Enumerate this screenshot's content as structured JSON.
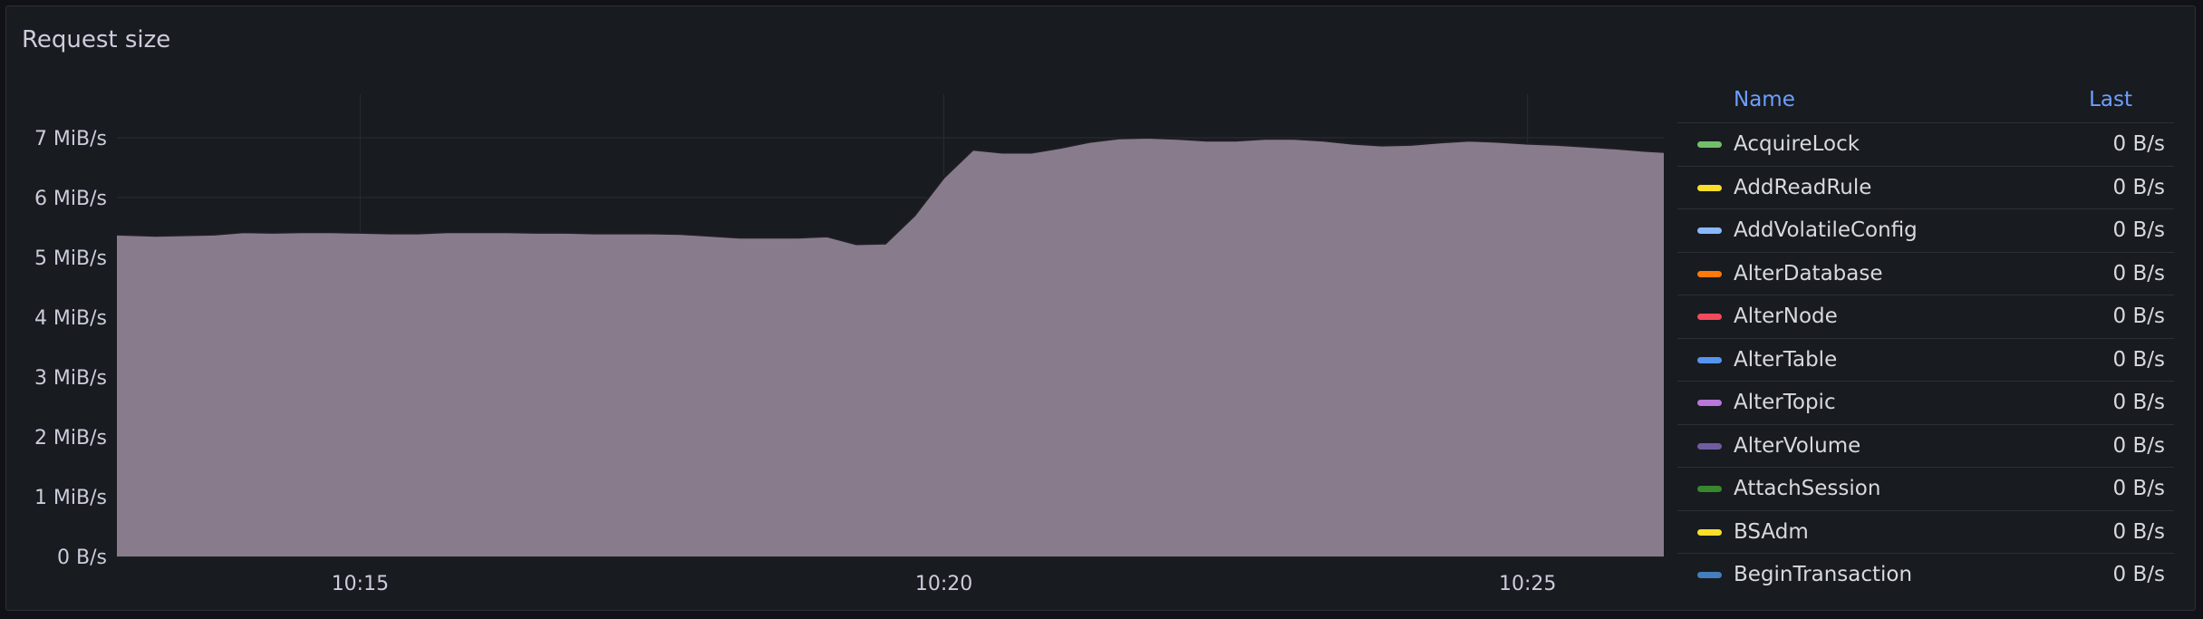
{
  "panel": {
    "title": "Request size"
  },
  "legend": {
    "header_name": "Name",
    "header_last": "Last",
    "items": [
      {
        "name": "AcquireLock",
        "value": "0 B/s",
        "color": "#73bf69"
      },
      {
        "name": "AddReadRule",
        "value": "0 B/s",
        "color": "#fade2a"
      },
      {
        "name": "AddVolatileConfig",
        "value": "0 B/s",
        "color": "#8ab8ff"
      },
      {
        "name": "AlterDatabase",
        "value": "0 B/s",
        "color": "#ff780a"
      },
      {
        "name": "AlterNode",
        "value": "0 B/s",
        "color": "#f2495c"
      },
      {
        "name": "AlterTable",
        "value": "0 B/s",
        "color": "#5794f2"
      },
      {
        "name": "AlterTopic",
        "value": "0 B/s",
        "color": "#b877d9"
      },
      {
        "name": "AlterVolume",
        "value": "0 B/s",
        "color": "#705da0"
      },
      {
        "name": "AttachSession",
        "value": "0 B/s",
        "color": "#37872d"
      },
      {
        "name": "BSAdm",
        "value": "0 B/s",
        "color": "#fade2a"
      },
      {
        "name": "BeginTransaction",
        "value": "0 B/s",
        "color": "#447ebc"
      }
    ]
  },
  "chart_data": {
    "type": "area",
    "fill_color": "#877b8c",
    "line_color": "#1e1e24",
    "grid": true,
    "xlim": [
      "10:12:55",
      "10:26:10"
    ],
    "ylim": [
      0,
      7.4
    ],
    "y_ticks": [
      {
        "value": 0,
        "label": "0 B/s"
      },
      {
        "value": 1,
        "label": "1 MiB/s"
      },
      {
        "value": 2,
        "label": "2 MiB/s"
      },
      {
        "value": 3,
        "label": "3 MiB/s"
      },
      {
        "value": 4,
        "label": "4 MiB/s"
      },
      {
        "value": 5,
        "label": "5 MiB/s"
      },
      {
        "value": 6,
        "label": "6 MiB/s"
      },
      {
        "value": 7,
        "label": "7 MiB/s"
      }
    ],
    "x_ticks": [
      {
        "value": "10:15:00",
        "label": "10:15"
      },
      {
        "value": "10:20:00",
        "label": "10:20"
      },
      {
        "value": "10:25:00",
        "label": "10:25"
      }
    ],
    "series": [
      {
        "x": [
          "10:12:55",
          "10:13:15",
          "10:13:45",
          "10:14:00",
          "10:14:15",
          "10:14:30",
          "10:14:45",
          "10:15:00",
          "10:15:15",
          "10:15:30",
          "10:15:45",
          "10:16:00",
          "10:16:15",
          "10:16:30",
          "10:16:45",
          "10:17:00",
          "10:17:15",
          "10:17:30",
          "10:17:45",
          "10:18:00",
          "10:18:15",
          "10:18:30",
          "10:18:45",
          "10:19:00",
          "10:19:15",
          "10:19:30",
          "10:19:45",
          "10:20:00",
          "10:20:15",
          "10:20:30",
          "10:20:45",
          "10:21:00",
          "10:21:15",
          "10:21:30",
          "10:21:45",
          "10:22:00",
          "10:22:15",
          "10:22:30",
          "10:22:45",
          "10:23:00",
          "10:23:15",
          "10:23:30",
          "10:23:45",
          "10:24:00",
          "10:24:15",
          "10:24:30",
          "10:24:45",
          "10:25:00",
          "10:25:15",
          "10:25:30",
          "10:25:45",
          "10:26:00",
          "10:26:10"
        ],
        "y": [
          5.38,
          5.36,
          5.38,
          5.42,
          5.41,
          5.42,
          5.42,
          5.41,
          5.4,
          5.4,
          5.42,
          5.42,
          5.42,
          5.41,
          5.41,
          5.4,
          5.4,
          5.4,
          5.39,
          5.36,
          5.33,
          5.33,
          5.33,
          5.35,
          5.22,
          5.23,
          5.7,
          6.33,
          6.8,
          6.75,
          6.75,
          6.83,
          6.93,
          6.99,
          7.0,
          6.98,
          6.95,
          6.95,
          6.98,
          6.98,
          6.95,
          6.9,
          6.87,
          6.88,
          6.92,
          6.95,
          6.93,
          6.9,
          6.88,
          6.85,
          6.82,
          6.78,
          6.76
        ]
      }
    ]
  }
}
